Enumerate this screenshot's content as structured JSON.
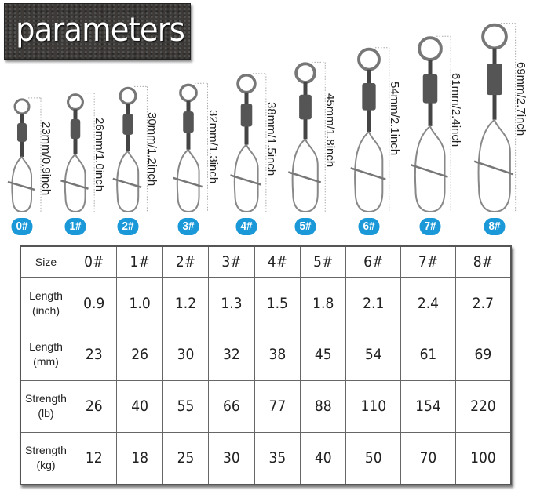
{
  "title": "parameters",
  "accent_color": "#1a98d8",
  "sizes": [
    {
      "badge": "0#",
      "dim": "23mm/0.9inch",
      "mm": 23
    },
    {
      "badge": "1#",
      "dim": "26mm/1.0inch",
      "mm": 26
    },
    {
      "badge": "2#",
      "dim": "30mm/1.2inch",
      "mm": 30
    },
    {
      "badge": "3#",
      "dim": "32mm/1.3inch",
      "mm": 32
    },
    {
      "badge": "4#",
      "dim": "38mm/1.5inch",
      "mm": 38
    },
    {
      "badge": "5#",
      "dim": "45mm/1.8inch",
      "mm": 45
    },
    {
      "badge": "6#",
      "dim": "54mm/2.1inch",
      "mm": 54
    },
    {
      "badge": "7#",
      "dim": "61mm/2.4inch",
      "mm": 61
    },
    {
      "badge": "8#",
      "dim": "69mm/2.7inch",
      "mm": 69
    }
  ],
  "table": {
    "rows": [
      {
        "header": [
          "Size"
        ],
        "cells": [
          "0#",
          "1#",
          "2#",
          "3#",
          "4#",
          "5#",
          "6#",
          "7#",
          "8#"
        ]
      },
      {
        "header": [
          "Length",
          "(inch)"
        ],
        "cells": [
          "0.9",
          "1.0",
          "1.2",
          "1.3",
          "1.5",
          "1.8",
          "2.1",
          "2.4",
          "2.7"
        ]
      },
      {
        "header": [
          "Length",
          "(mm)"
        ],
        "cells": [
          "23",
          "26",
          "30",
          "32",
          "38",
          "45",
          "54",
          "61",
          "69"
        ]
      },
      {
        "header": [
          "Strength",
          "(lb)"
        ],
        "cells": [
          "26",
          "40",
          "55",
          "66",
          "77",
          "88",
          "110",
          "154",
          "220"
        ]
      },
      {
        "header": [
          "Strength",
          "(kg)"
        ],
        "cells": [
          "12",
          "18",
          "25",
          "30",
          "35",
          "40",
          "50",
          "70",
          "100"
        ]
      }
    ]
  }
}
